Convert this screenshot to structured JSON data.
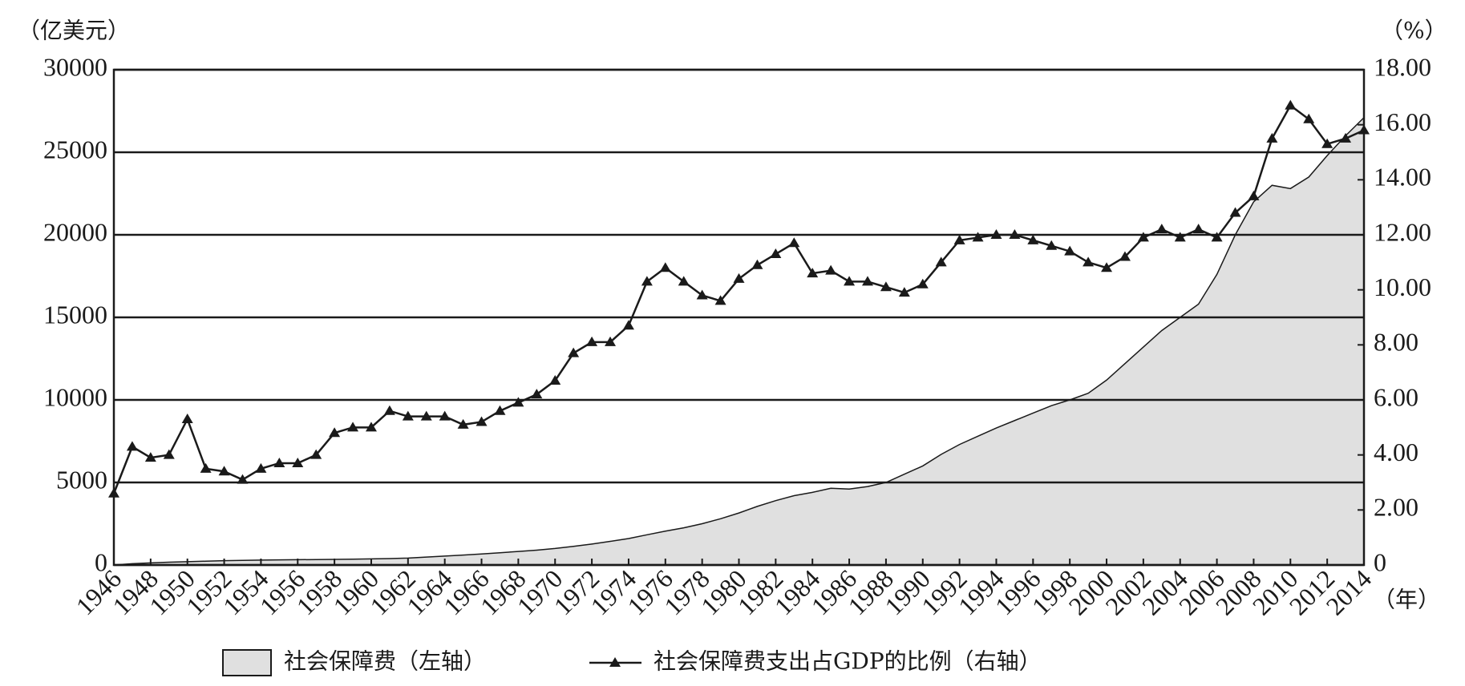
{
  "chart_data": {
    "type": "combo",
    "y_label": "（亿美元）",
    "y2_label": "（%）",
    "x_label": "（年）",
    "x": [
      1946,
      1947,
      1948,
      1949,
      1950,
      1951,
      1952,
      1953,
      1954,
      1955,
      1956,
      1957,
      1958,
      1959,
      1960,
      1961,
      1962,
      1963,
      1964,
      1965,
      1966,
      1967,
      1968,
      1969,
      1970,
      1971,
      1972,
      1973,
      1974,
      1975,
      1976,
      1977,
      1978,
      1979,
      1980,
      1981,
      1982,
      1983,
      1984,
      1985,
      1986,
      1987,
      1988,
      1989,
      1990,
      1991,
      1992,
      1993,
      1994,
      1995,
      1996,
      1997,
      1998,
      1999,
      2000,
      2001,
      2002,
      2003,
      2004,
      2005,
      2006,
      2007,
      2008,
      2009,
      2010,
      2011,
      2012,
      2013,
      2014
    ],
    "xlim": [
      1946,
      2014
    ],
    "xticks": [
      1946,
      1948,
      1950,
      1952,
      1954,
      1956,
      1958,
      1960,
      1962,
      1964,
      1966,
      1968,
      1970,
      1972,
      1974,
      1976,
      1978,
      1980,
      1982,
      1984,
      1986,
      1988,
      1990,
      1992,
      1994,
      1996,
      1998,
      2000,
      2002,
      2004,
      2006,
      2008,
      2010,
      2012,
      2014
    ],
    "ylim": [
      0,
      30000
    ],
    "yticks": [
      0,
      5000,
      10000,
      15000,
      20000,
      25000,
      30000
    ],
    "y2lim": [
      0,
      18
    ],
    "y2ticks": [
      0,
      {
        "value": 2,
        "label": "2.00"
      },
      {
        "value": 4,
        "label": "4.00"
      },
      {
        "value": 6,
        "label": "6.00"
      },
      {
        "value": 8,
        "label": "8.00"
      },
      {
        "value": 10,
        "label": "10.00"
      },
      {
        "value": 12,
        "label": "12.00"
      },
      {
        "value": 14,
        "label": "14.00"
      },
      {
        "value": 16,
        "label": "16.00"
      },
      {
        "value": 18,
        "label": "18.00"
      }
    ],
    "grid": true,
    "series": [
      {
        "name": "社会保障费（左轴）",
        "type": "area",
        "color": "#e0e0e0",
        "values": [
          0,
          80,
          130,
          170,
          200,
          230,
          260,
          280,
          300,
          310,
          320,
          330,
          340,
          350,
          370,
          390,
          420,
          480,
          540,
          600,
          670,
          740,
          820,
          900,
          1000,
          1130,
          1270,
          1430,
          1600,
          1830,
          2050,
          2250,
          2500,
          2800,
          3150,
          3550,
          3900,
          4200,
          4400,
          4650,
          4600,
          4750,
          5000,
          5500,
          6000,
          6700,
          7300,
          7800,
          8300,
          8750,
          9200,
          9650,
          10000,
          10400,
          11200,
          12200,
          13200,
          14200,
          15000,
          15800,
          17600,
          20000,
          22000,
          23000,
          22800,
          23500,
          24800,
          26000,
          27100
        ]
      },
      {
        "name": "社会保障费支出占GDP的比例（右轴）",
        "type": "line",
        "axis": "y2",
        "color": "#1a1a1a",
        "values": [
          2.6,
          4.3,
          3.9,
          4.0,
          5.3,
          3.5,
          3.4,
          3.1,
          3.5,
          3.7,
          3.7,
          4.0,
          4.8,
          5.0,
          5.0,
          5.6,
          5.4,
          5.4,
          5.4,
          5.1,
          5.2,
          5.6,
          5.9,
          6.2,
          6.7,
          7.7,
          8.1,
          8.1,
          8.7,
          10.3,
          10.8,
          10.3,
          9.8,
          9.6,
          10.4,
          10.9,
          11.3,
          11.7,
          10.6,
          10.7,
          10.3,
          10.3,
          10.1,
          9.9,
          10.2,
          11.0,
          11.8,
          11.9,
          12.0,
          12.0,
          11.8,
          11.6,
          11.4,
          11.0,
          10.8,
          11.2,
          11.9,
          12.2,
          11.9,
          12.2,
          11.9,
          12.8,
          13.4,
          15.5,
          16.7,
          16.2,
          15.3,
          15.5,
          15.8
        ]
      }
    ]
  }
}
